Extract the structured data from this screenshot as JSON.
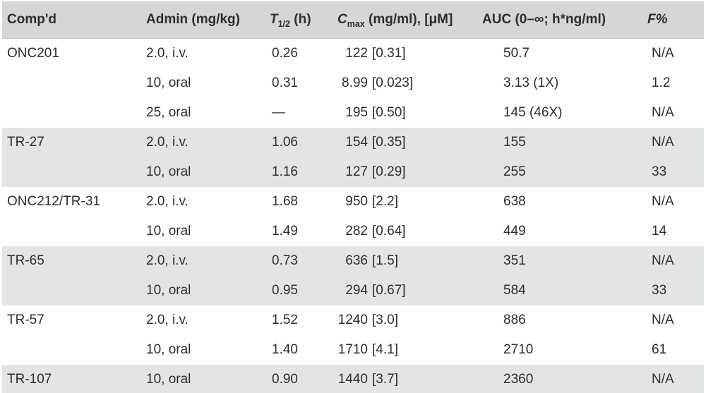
{
  "table": {
    "colors": {
      "header_bg": "#d4d6d7",
      "band_bg": "#e3e5e5",
      "text": "#2b2d2e",
      "page_bg": "#ffffff"
    },
    "columns": [
      {
        "label": "Comp'd"
      },
      {
        "label": "Admin (mg/kg)"
      },
      {
        "prefix": "T",
        "sub": "1/2",
        "suffix": " (h)"
      },
      {
        "prefix": "C",
        "sub": "max",
        "suffix": " (mg/ml), [μM]"
      },
      {
        "label": "AUC (0–∞; h*ng/ml)"
      },
      {
        "label": "F%"
      }
    ],
    "groups": [
      {
        "compound": "ONC201",
        "shaded": false,
        "rows": [
          {
            "admin": "2.0, i.v.",
            "t_half": "0.26",
            "cmax_value": "122",
            "cmax_um": "[0.31]",
            "auc": "50.7",
            "f_percent": "N/A"
          },
          {
            "admin": "10, oral",
            "t_half": "0.31",
            "cmax_value": "8.99",
            "cmax_um": "[0.023]",
            "auc": "3.13 (1X)",
            "f_percent": "1.2"
          },
          {
            "admin": "25, oral",
            "t_half": "—",
            "cmax_value": "195",
            "cmax_um": "[0.50]",
            "auc": "145 (46X)",
            "f_percent": "N/A"
          }
        ]
      },
      {
        "compound": "TR-27",
        "shaded": true,
        "rows": [
          {
            "admin": "2.0, i.v.",
            "t_half": "1.06",
            "cmax_value": "154",
            "cmax_um": "[0.35]",
            "auc": "155",
            "f_percent": "N/A"
          },
          {
            "admin": "10, oral",
            "t_half": "1.16",
            "cmax_value": "127",
            "cmax_um": "[0.29]",
            "auc": "255",
            "f_percent": "33"
          }
        ]
      },
      {
        "compound": "ONC212/TR-31",
        "shaded": false,
        "rows": [
          {
            "admin": "2.0, i.v.",
            "t_half": "1.68",
            "cmax_value": "950",
            "cmax_um": "[2.2]",
            "auc": "638",
            "f_percent": "N/A"
          },
          {
            "admin": "10, oral",
            "t_half": "1.49",
            "cmax_value": "282",
            "cmax_um": "[0.64]",
            "auc": "449",
            "f_percent": "14"
          }
        ]
      },
      {
        "compound": "TR-65",
        "shaded": true,
        "rows": [
          {
            "admin": "2.0, i.v.",
            "t_half": "0.73",
            "cmax_value": "636",
            "cmax_um": "[1.5]",
            "auc": "351",
            "f_percent": "N/A"
          },
          {
            "admin": "10, oral",
            "t_half": "0.95",
            "cmax_value": "294",
            "cmax_um": "[0.67]",
            "auc": "584",
            "f_percent": "33"
          }
        ]
      },
      {
        "compound": "TR-57",
        "shaded": false,
        "rows": [
          {
            "admin": "2.0, i.v.",
            "t_half": "1.52",
            "cmax_value": "1240",
            "cmax_um": "[3.0]",
            "auc": "886",
            "f_percent": "N/A"
          },
          {
            "admin": "10, oral",
            "t_half": "1.40",
            "cmax_value": "1710",
            "cmax_um": "[4.1]",
            "auc": "2710",
            "f_percent": "61"
          }
        ]
      },
      {
        "compound": "TR-107",
        "shaded": true,
        "rows": [
          {
            "admin": "10, oral",
            "t_half": "0.90",
            "cmax_value": "1440",
            "cmax_um": "[3.7]",
            "auc": "2360",
            "f_percent": "N/A"
          }
        ]
      }
    ]
  }
}
